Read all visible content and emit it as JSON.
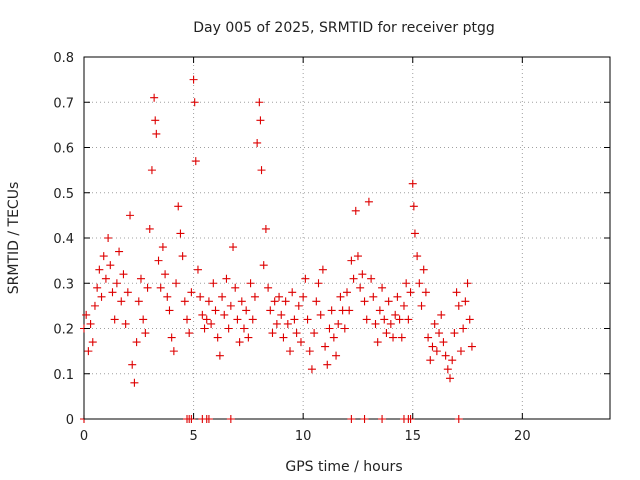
{
  "chart_data": {
    "type": "scatter",
    "title": "Day 005 of 2025, SRMTID for receiver ptgg",
    "xlabel": "GPS time / hours",
    "ylabel": "SRMTID / TECUs",
    "xlim": [
      0,
      24
    ],
    "ylim": [
      0,
      0.8
    ],
    "xticks": [
      0,
      5,
      10,
      15,
      20
    ],
    "yticks": [
      0,
      0.1,
      0.2,
      0.3,
      0.4,
      0.5,
      0.6,
      0.7,
      0.8
    ],
    "grid": true,
    "marker": "plus",
    "color": "#dd0000",
    "series": [
      {
        "name": "SRMTID",
        "points": [
          [
            0.0,
            0.2
          ],
          [
            0.1,
            0.23
          ],
          [
            0.2,
            0.15
          ],
          [
            0.3,
            0.21
          ],
          [
            0.4,
            0.17
          ],
          [
            0.5,
            0.25
          ],
          [
            0.6,
            0.29
          ],
          [
            0.7,
            0.33
          ],
          [
            0.8,
            0.27
          ],
          [
            0.9,
            0.36
          ],
          [
            1.0,
            0.31
          ],
          [
            1.1,
            0.4
          ],
          [
            1.2,
            0.34
          ],
          [
            1.3,
            0.28
          ],
          [
            1.4,
            0.22
          ],
          [
            1.5,
            0.3
          ],
          [
            1.6,
            0.37
          ],
          [
            1.7,
            0.26
          ],
          [
            1.8,
            0.32
          ],
          [
            1.9,
            0.21
          ],
          [
            2.0,
            0.28
          ],
          [
            2.1,
            0.45
          ],
          [
            2.2,
            0.12
          ],
          [
            2.3,
            0.08
          ],
          [
            2.4,
            0.17
          ],
          [
            2.5,
            0.26
          ],
          [
            2.6,
            0.31
          ],
          [
            2.7,
            0.22
          ],
          [
            2.8,
            0.19
          ],
          [
            2.9,
            0.29
          ],
          [
            3.0,
            0.42
          ],
          [
            3.1,
            0.55
          ],
          [
            3.2,
            0.71
          ],
          [
            3.25,
            0.66
          ],
          [
            3.3,
            0.63
          ],
          [
            3.4,
            0.35
          ],
          [
            3.5,
            0.29
          ],
          [
            3.6,
            0.38
          ],
          [
            3.7,
            0.32
          ],
          [
            3.8,
            0.27
          ],
          [
            3.9,
            0.24
          ],
          [
            4.0,
            0.18
          ],
          [
            4.1,
            0.15
          ],
          [
            4.2,
            0.3
          ],
          [
            4.3,
            0.47
          ],
          [
            4.4,
            0.41
          ],
          [
            4.5,
            0.36
          ],
          [
            4.6,
            0.26
          ],
          [
            4.7,
            0.22
          ],
          [
            4.8,
            0.19
          ],
          [
            4.9,
            0.28
          ],
          [
            5.0,
            0.75
          ],
          [
            5.05,
            0.7
          ],
          [
            5.1,
            0.57
          ],
          [
            5.2,
            0.33
          ],
          [
            5.3,
            0.27
          ],
          [
            5.4,
            0.23
          ],
          [
            5.5,
            0.2
          ],
          [
            5.6,
            0.22
          ],
          [
            5.7,
            0.26
          ],
          [
            5.8,
            0.21
          ],
          [
            5.9,
            0.3
          ],
          [
            6.0,
            0.24
          ],
          [
            6.1,
            0.18
          ],
          [
            6.2,
            0.14
          ],
          [
            6.3,
            0.27
          ],
          [
            6.4,
            0.23
          ],
          [
            6.5,
            0.31
          ],
          [
            6.6,
            0.2
          ],
          [
            6.7,
            0.25
          ],
          [
            6.8,
            0.38
          ],
          [
            6.9,
            0.29
          ],
          [
            7.0,
            0.22
          ],
          [
            7.1,
            0.17
          ],
          [
            7.2,
            0.26
          ],
          [
            7.3,
            0.2
          ],
          [
            7.4,
            0.24
          ],
          [
            7.5,
            0.18
          ],
          [
            7.6,
            0.3
          ],
          [
            7.7,
            0.22
          ],
          [
            7.8,
            0.27
          ],
          [
            7.9,
            0.61
          ],
          [
            8.0,
            0.7
          ],
          [
            8.05,
            0.66
          ],
          [
            8.1,
            0.55
          ],
          [
            8.2,
            0.34
          ],
          [
            8.3,
            0.42
          ],
          [
            8.4,
            0.29
          ],
          [
            8.5,
            0.24
          ],
          [
            8.6,
            0.19
          ],
          [
            8.7,
            0.26
          ],
          [
            8.8,
            0.21
          ],
          [
            8.9,
            0.27
          ],
          [
            9.0,
            0.23
          ],
          [
            9.1,
            0.18
          ],
          [
            9.2,
            0.26
          ],
          [
            9.3,
            0.21
          ],
          [
            9.4,
            0.15
          ],
          [
            9.5,
            0.28
          ],
          [
            9.6,
            0.22
          ],
          [
            9.7,
            0.19
          ],
          [
            9.8,
            0.25
          ],
          [
            9.9,
            0.17
          ],
          [
            10.0,
            0.27
          ],
          [
            10.1,
            0.31
          ],
          [
            10.2,
            0.22
          ],
          [
            10.3,
            0.15
          ],
          [
            10.4,
            0.11
          ],
          [
            10.5,
            0.19
          ],
          [
            10.6,
            0.26
          ],
          [
            10.7,
            0.3
          ],
          [
            10.8,
            0.23
          ],
          [
            10.9,
            0.33
          ],
          [
            11.0,
            0.16
          ],
          [
            11.1,
            0.12
          ],
          [
            11.2,
            0.2
          ],
          [
            11.3,
            0.24
          ],
          [
            11.4,
            0.18
          ],
          [
            11.5,
            0.14
          ],
          [
            11.6,
            0.21
          ],
          [
            11.7,
            0.27
          ],
          [
            11.8,
            0.24
          ],
          [
            11.9,
            0.2
          ],
          [
            12.0,
            0.28
          ],
          [
            12.1,
            0.24
          ],
          [
            12.2,
            0.35
          ],
          [
            12.3,
            0.31
          ],
          [
            12.4,
            0.46
          ],
          [
            12.5,
            0.36
          ],
          [
            12.6,
            0.29
          ],
          [
            12.7,
            0.32
          ],
          [
            12.8,
            0.26
          ],
          [
            12.9,
            0.22
          ],
          [
            13.0,
            0.48
          ],
          [
            13.1,
            0.31
          ],
          [
            13.2,
            0.27
          ],
          [
            13.3,
            0.21
          ],
          [
            13.4,
            0.17
          ],
          [
            13.5,
            0.24
          ],
          [
            13.6,
            0.29
          ],
          [
            13.7,
            0.22
          ],
          [
            13.8,
            0.19
          ],
          [
            13.9,
            0.26
          ],
          [
            14.0,
            0.21
          ],
          [
            14.1,
            0.18
          ],
          [
            14.2,
            0.23
          ],
          [
            14.3,
            0.27
          ],
          [
            14.4,
            0.22
          ],
          [
            14.5,
            0.18
          ],
          [
            14.6,
            0.25
          ],
          [
            14.7,
            0.3
          ],
          [
            14.8,
            0.22
          ],
          [
            14.9,
            0.28
          ],
          [
            15.0,
            0.52
          ],
          [
            15.05,
            0.47
          ],
          [
            15.1,
            0.41
          ],
          [
            15.2,
            0.36
          ],
          [
            15.3,
            0.3
          ],
          [
            15.4,
            0.25
          ],
          [
            15.5,
            0.33
          ],
          [
            15.6,
            0.28
          ],
          [
            15.7,
            0.18
          ],
          [
            15.8,
            0.13
          ],
          [
            15.9,
            0.16
          ],
          [
            16.0,
            0.21
          ],
          [
            16.1,
            0.15
          ],
          [
            16.2,
            0.19
          ],
          [
            16.3,
            0.23
          ],
          [
            16.4,
            0.17
          ],
          [
            16.5,
            0.14
          ],
          [
            16.6,
            0.11
          ],
          [
            16.7,
            0.09
          ],
          [
            16.8,
            0.13
          ],
          [
            16.9,
            0.19
          ],
          [
            17.0,
            0.28
          ],
          [
            17.1,
            0.25
          ],
          [
            17.2,
            0.15
          ],
          [
            17.3,
            0.2
          ],
          [
            17.4,
            0.26
          ],
          [
            17.5,
            0.3
          ],
          [
            17.6,
            0.22
          ],
          [
            17.7,
            0.16
          ]
        ]
      },
      {
        "name": "zero-values",
        "points": [
          [
            0.0,
            0
          ],
          [
            4.7,
            0
          ],
          [
            4.8,
            0
          ],
          [
            4.9,
            0
          ],
          [
            5.4,
            0
          ],
          [
            5.6,
            0
          ],
          [
            5.7,
            0
          ],
          [
            6.7,
            0
          ],
          [
            12.2,
            0
          ],
          [
            12.8,
            0
          ],
          [
            13.6,
            0
          ],
          [
            14.6,
            0
          ],
          [
            14.8,
            0
          ],
          [
            14.9,
            0
          ],
          [
            17.1,
            0
          ]
        ]
      }
    ]
  }
}
